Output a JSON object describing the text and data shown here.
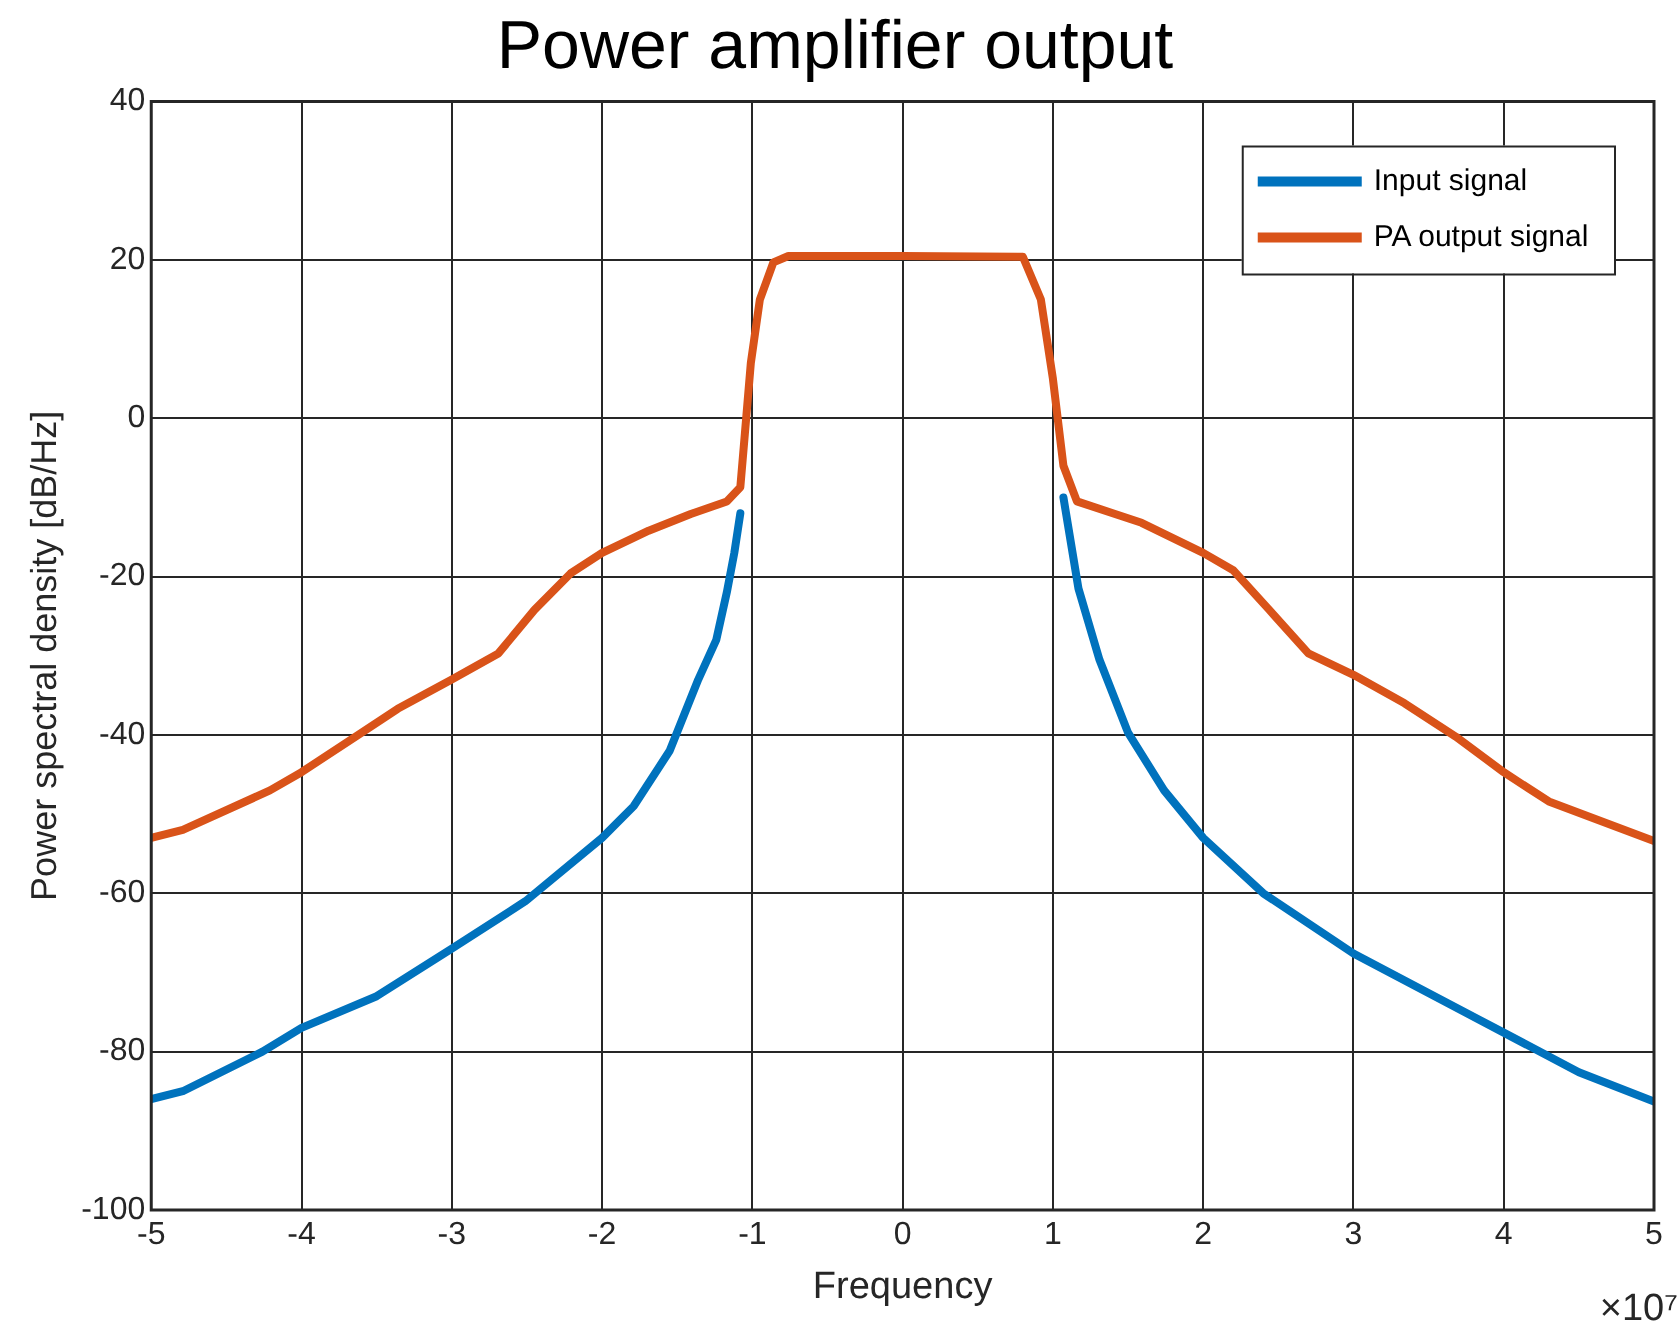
{
  "chart_data": {
    "type": "line",
    "title": "Power amplifier output",
    "xlabel": "Frequency",
    "ylabel": "Power spectral density [dB/Hz]",
    "annotations": [
      "×10⁷"
    ],
    "xlim": [
      -5,
      5
    ],
    "xticks": [
      -5,
      -4,
      -3,
      -2,
      -1,
      0,
      1,
      2,
      3,
      4,
      5
    ],
    "ylim": [
      -100,
      40
    ],
    "yticks": [
      -100,
      -80,
      -60,
      -40,
      -20,
      0,
      20,
      40
    ],
    "grid": true,
    "legend": "top right",
    "marker": "none",
    "line_style": "solid",
    "series": [
      {
        "name": "Input signal",
        "color": "#0072bd",
        "x": [
          -5,
          -4.79,
          -4.26,
          -4,
          -3.5,
          -3,
          -2.51,
          -2,
          -1.79,
          -1.55,
          -1.36,
          -1.24,
          -1.17,
          -1.12,
          -1.08,
          -1.05,
          -1.01,
          -0.95,
          -0.86,
          -0.76,
          0,
          0.8,
          0.92,
          1,
          1.07,
          1.17,
          1.31,
          1.5,
          1.74,
          2,
          2.4,
          3,
          3.54,
          4,
          4.5,
          5
        ],
        "values": [
          -86,
          -85,
          -80,
          -77,
          -73,
          -67,
          -61,
          -53,
          -49,
          -42,
          -33,
          -28,
          -22,
          -17,
          -12,
          null,
          null,
          null,
          null,
          null,
          null,
          null,
          null,
          null,
          -10,
          -21.5,
          -30.5,
          -39.7,
          -47,
          -53,
          -60,
          -67.6,
          -73,
          -77.6,
          -82.6,
          -86.3
        ]
      },
      {
        "name": "PA output signal",
        "color": "#d95319",
        "x": [
          -5,
          -4.79,
          -4.21,
          -4,
          -3.64,
          -3.36,
          -3,
          -2.69,
          -2.45,
          -2.21,
          -2,
          -1.69,
          -1.41,
          -1.17,
          -1.08,
          -1.05,
          -1.01,
          -0.95,
          -0.86,
          -0.76,
          0,
          0.8,
          0.92,
          1,
          1.07,
          1.16,
          1.59,
          2,
          2.2,
          2.44,
          2.7,
          3,
          3.34,
          3.68,
          4,
          4.3,
          5
        ],
        "values": [
          -53,
          -52,
          -47,
          -44.7,
          -40.2,
          -36.7,
          -33,
          -29.7,
          -24.2,
          -19.6,
          -17,
          -14.2,
          -12.1,
          -10.5,
          -8.7,
          -2,
          7,
          15,
          19.7,
          20.5,
          20.5,
          20.4,
          15,
          5,
          -6,
          -10.5,
          -13.2,
          -17,
          -19.2,
          -24.2,
          -29.7,
          -32.4,
          -36,
          -40.2,
          -44.7,
          -48.4,
          -53.4
        ]
      }
    ]
  }
}
